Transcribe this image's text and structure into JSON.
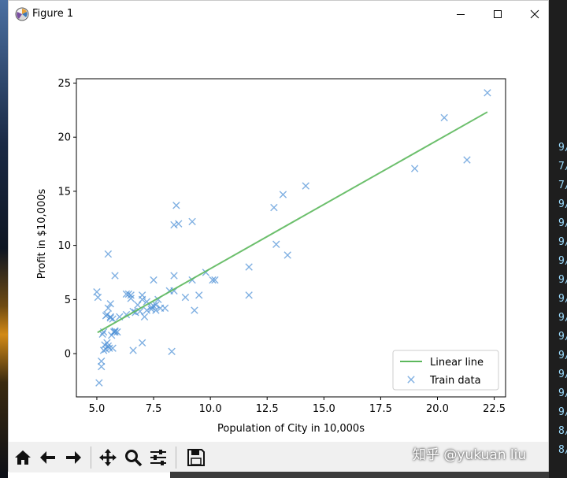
{
  "window": {
    "title": "Figure 1",
    "icon": "matplotlib-icon",
    "controls": [
      {
        "name": "minimize",
        "icon": "minimize-icon"
      },
      {
        "name": "maximize",
        "icon": "maximize-icon"
      },
      {
        "name": "close",
        "icon": "close-icon"
      }
    ]
  },
  "toolbar": {
    "buttons": [
      {
        "name": "home",
        "icon": "home-icon"
      },
      {
        "name": "back",
        "icon": "back-arrow-icon"
      },
      {
        "name": "forward",
        "icon": "forward-arrow-icon"
      },
      {
        "name": "pan",
        "icon": "move-icon"
      },
      {
        "name": "zoom",
        "icon": "zoom-icon"
      },
      {
        "name": "configure-subplots",
        "icon": "sliders-icon"
      },
      {
        "name": "save",
        "icon": "save-icon"
      }
    ]
  },
  "watermark": "知乎 @yukuan liu",
  "background_terminal_glyphs": [
    "9/",
    "7/",
    "7/",
    "9/",
    "9/",
    "9/",
    "9/",
    "9/",
    "9/",
    "9/",
    "9/",
    "9/",
    "9/",
    "9/",
    "9/",
    "8/",
    "8/"
  ],
  "colors": {
    "line": "#5cb85c",
    "scatter": "#4a8ed6",
    "axes": "#000000",
    "toolbar": "#f0f0f0"
  },
  "chart_data": {
    "type": "scatter",
    "title": "",
    "xlabel": "Population of City in 10,000s",
    "ylabel": "Profit in $10,000s",
    "xlim": [
      4.1,
      23.0
    ],
    "ylim": [
      -4.0,
      25.4
    ],
    "xticks": [
      5.0,
      7.5,
      10.0,
      12.5,
      15.0,
      17.5,
      20.0,
      22.5
    ],
    "xtick_labels": [
      "5.0",
      "7.5",
      "10.0",
      "12.5",
      "15.0",
      "17.5",
      "20.0",
      "22.5"
    ],
    "yticks": [
      0,
      5,
      10,
      15,
      20,
      25
    ],
    "ytick_labels": [
      "0",
      "5",
      "10",
      "15",
      "20",
      "25"
    ],
    "grid": false,
    "legend": {
      "position": "lower-right",
      "entries": [
        {
          "label": "Linear line",
          "marker": "line"
        },
        {
          "label": "Train data",
          "marker": "x"
        }
      ]
    },
    "series": [
      {
        "name": "Linear line",
        "kind": "line",
        "x": [
          5.03,
          22.2
        ],
        "y": [
          1.95,
          22.33
        ]
      },
      {
        "name": "Train data",
        "kind": "scatter",
        "marker": "x",
        "x": [
          5.0,
          5.05,
          5.2,
          5.3,
          5.4,
          5.5,
          5.5,
          5.6,
          5.6,
          5.7,
          5.8,
          5.8,
          5.9,
          6.0,
          6.3,
          6.4,
          6.5,
          6.6,
          6.7,
          7.0,
          7.1,
          7.2,
          7.4,
          7.5,
          7.6,
          7.8,
          8.0,
          8.2,
          8.4,
          8.4,
          8.6,
          8.5,
          8.9,
          9.2,
          9.2,
          9.3,
          9.5,
          9.8,
          10.1,
          10.2,
          11.7,
          11.7,
          12.8,
          12.9,
          13.2,
          13.4,
          14.2,
          19.0,
          20.3,
          21.3,
          22.2,
          5.1,
          5.2,
          5.25,
          5.35,
          5.4,
          5.45,
          5.5,
          5.55,
          5.6,
          5.65,
          5.7,
          5.75,
          5.8,
          5.3,
          5.45,
          6.3,
          6.5,
          6.8,
          7.0,
          7.2,
          7.4,
          7.5,
          7.6,
          7.7,
          8.3,
          8.4,
          7.0,
          6.6,
          6.9
        ],
        "y": [
          5.7,
          5.2,
          -1.2,
          0.3,
          3.5,
          9.2,
          0.7,
          4.6,
          3.4,
          3.2,
          2.0,
          7.2,
          2.0,
          3.4,
          5.5,
          5.5,
          5.4,
          0.3,
          3.8,
          5.4,
          3.4,
          4.8,
          4.1,
          6.8,
          4.5,
          4.2,
          4.2,
          5.8,
          7.2,
          11.9,
          12.0,
          13.7,
          5.2,
          12.2,
          6.8,
          4.0,
          5.4,
          7.5,
          6.8,
          6.8,
          8.0,
          5.4,
          13.5,
          10.1,
          14.7,
          9.1,
          15.5,
          17.1,
          21.8,
          17.9,
          24.1,
          -2.7,
          -0.7,
          1.8,
          0.8,
          0.4,
          1.0,
          4.2,
          0.5,
          3.3,
          1.7,
          0.5,
          2.0,
          2.1,
          2.0,
          3.6,
          3.6,
          5.1,
          4.5,
          1.0,
          4.0,
          4.3,
          4.4,
          4.0,
          5.0,
          0.2,
          5.8,
          5.0,
          3.9,
          3.9
        ]
      }
    ]
  }
}
